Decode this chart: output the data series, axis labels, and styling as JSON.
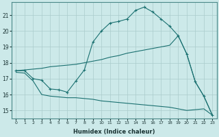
{
  "xlabel": "Humidex (Indice chaleur)",
  "background_color": "#cce9e9",
  "grid_color": "#aacccc",
  "line_color": "#1a7070",
  "xlim": [
    -0.5,
    23.5
  ],
  "ylim": [
    14.5,
    21.8
  ],
  "yticks": [
    15,
    16,
    17,
    18,
    19,
    20,
    21
  ],
  "xticks": [
    0,
    1,
    2,
    3,
    4,
    5,
    6,
    7,
    8,
    9,
    10,
    11,
    12,
    13,
    14,
    15,
    16,
    17,
    18,
    19,
    20,
    21,
    22,
    23
  ],
  "curve_x": [
    0,
    1,
    2,
    3,
    4,
    5,
    6,
    7,
    8,
    9,
    10,
    11,
    12,
    13,
    14,
    15,
    16,
    17,
    18,
    19,
    20,
    21,
    22,
    23
  ],
  "curve_y": [
    17.5,
    17.5,
    17.0,
    16.9,
    16.35,
    16.3,
    16.15,
    16.85,
    17.55,
    19.3,
    20.0,
    20.5,
    20.6,
    20.75,
    21.3,
    21.5,
    21.2,
    20.75,
    20.3,
    19.7,
    18.55,
    16.8,
    15.9,
    14.7
  ],
  "upper_x": [
    0,
    1,
    2,
    3,
    4,
    5,
    6,
    7,
    8,
    9,
    10,
    11,
    12,
    13,
    14,
    15,
    16,
    17,
    18,
    19,
    20,
    21,
    22,
    23
  ],
  "upper_y": [
    17.5,
    17.55,
    17.6,
    17.65,
    17.75,
    17.8,
    17.85,
    17.9,
    18.0,
    18.1,
    18.2,
    18.35,
    18.45,
    18.6,
    18.7,
    18.8,
    18.9,
    19.0,
    19.1,
    19.7,
    18.55,
    16.8,
    15.9,
    14.7
  ],
  "lower_x": [
    0,
    1,
    2,
    3,
    4,
    5,
    6,
    7,
    8,
    9,
    10,
    11,
    12,
    13,
    14,
    15,
    16,
    17,
    18,
    19,
    20,
    21,
    22,
    23
  ],
  "lower_y": [
    17.4,
    17.35,
    16.85,
    16.0,
    15.9,
    15.85,
    15.8,
    15.8,
    15.75,
    15.7,
    15.6,
    15.55,
    15.5,
    15.45,
    15.4,
    15.35,
    15.3,
    15.25,
    15.2,
    15.1,
    15.0,
    15.05,
    15.1,
    14.7
  ]
}
